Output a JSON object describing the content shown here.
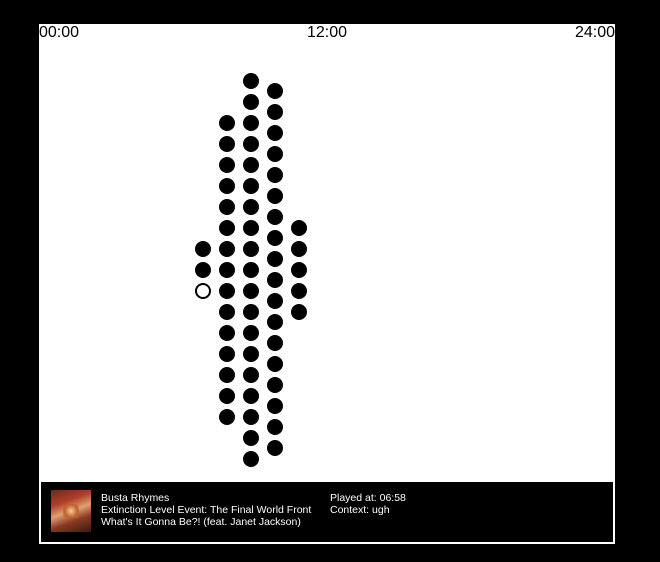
{
  "timeline": {
    "start": "00:00",
    "middle": "12:00",
    "end": "24:00"
  },
  "plays": {
    "columns": [
      {
        "count": 3,
        "selected_index": 2
      },
      {
        "count": 15,
        "selected_index": -1
      },
      {
        "count": 19,
        "selected_index": -1
      },
      {
        "count": 18,
        "selected_index": -1
      },
      {
        "count": 5,
        "selected_index": -1
      }
    ]
  },
  "now_playing": {
    "artist": "Busta Rhymes",
    "album": "Extinction Level Event: The Final World Front",
    "track": "What's It Gonna Be?! (feat. Janet Jackson)",
    "played_at": "Played at: 06:58",
    "context": "Context: ugh",
    "album_art_icon": "album-cover"
  }
}
